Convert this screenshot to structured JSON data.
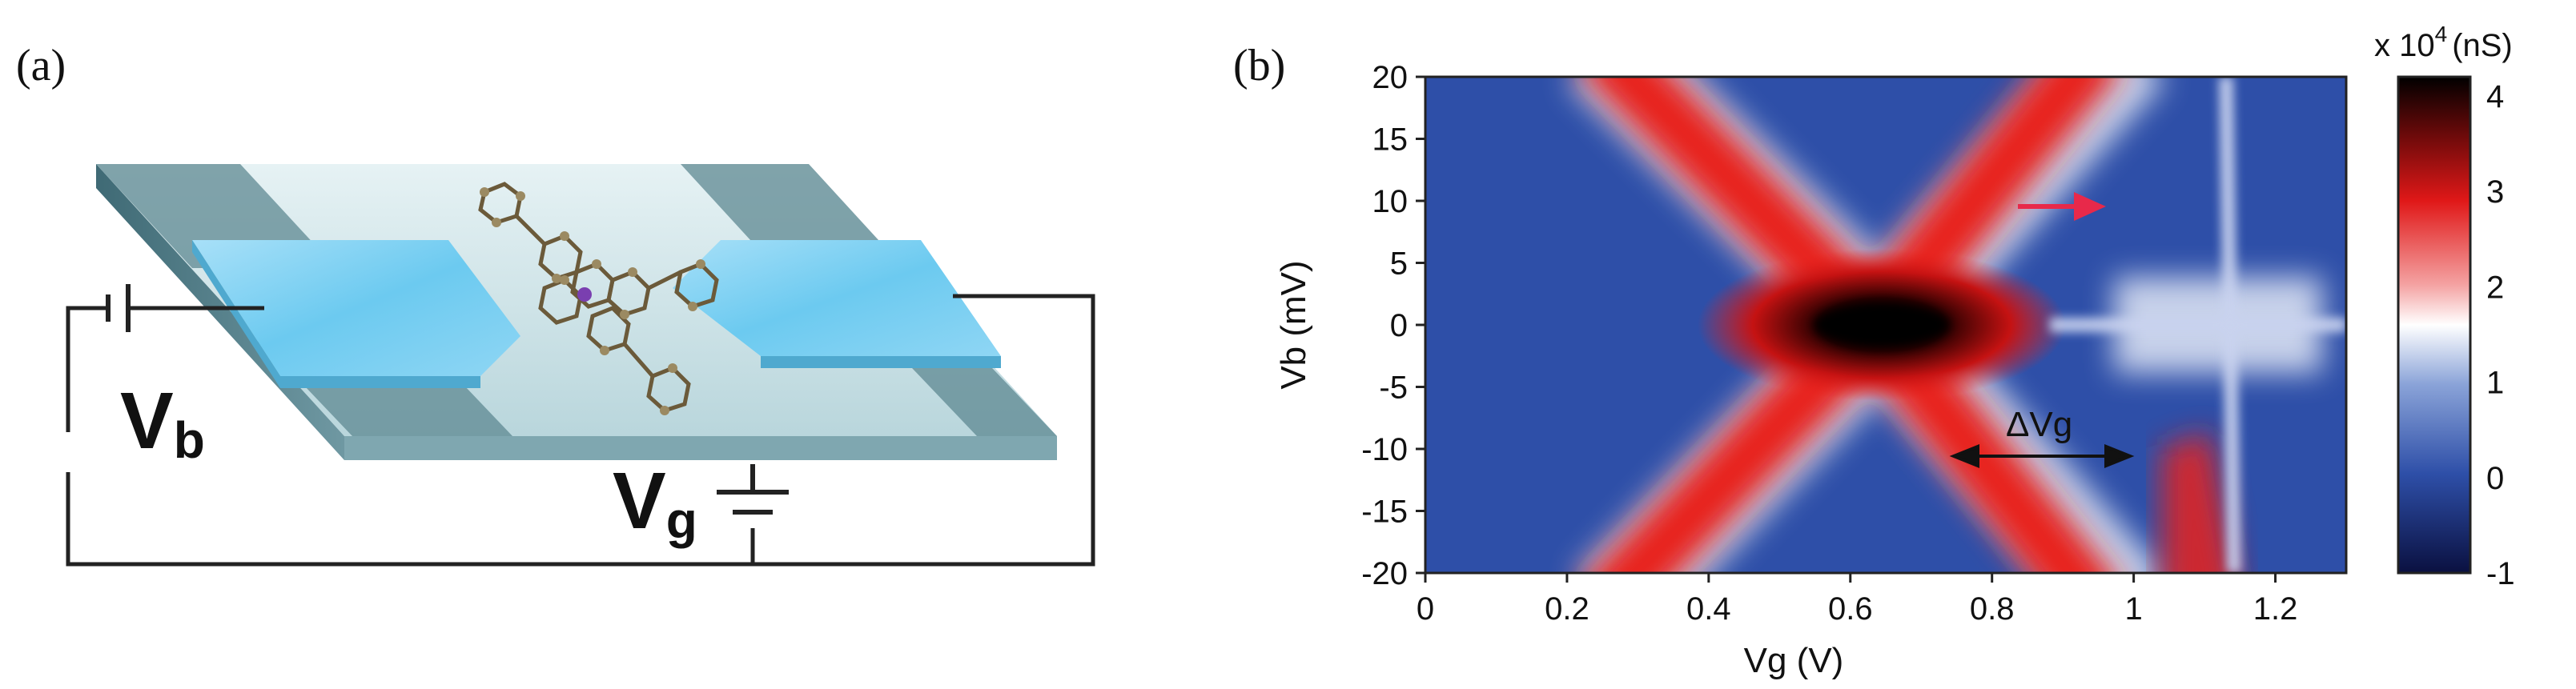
{
  "panel_a": {
    "label": "(a)",
    "vb_label": "V",
    "vb_sub": "b",
    "vg_label": "V",
    "vg_sub": "g"
  },
  "panel_b": {
    "label": "(b)",
    "colorbar_title": "x 10",
    "colorbar_exp": "4",
    "colorbar_unit": "(nS)",
    "annotation": "ΔVg",
    "colors": {
      "low": "#000000",
      "mid_blue": "#2e4fa8",
      "white": "#ffffff",
      "red": "#e8201c",
      "arrow": "#e8294a"
    }
  },
  "chart_data": {
    "type": "heatmap",
    "xlabel": "Vg (V)",
    "ylabel": "Vb (mV)",
    "xlim": [
      0,
      1.3
    ],
    "ylim": [
      -20,
      20
    ],
    "xticks": [
      "0",
      "0.2",
      "0.4",
      "0.6",
      "0.8",
      "1",
      "1.2"
    ],
    "yticks": [
      "20",
      "15",
      "10",
      "5",
      "0",
      "-5",
      "-10",
      "-15",
      "-20"
    ],
    "colorbar_ticks": [
      "4",
      "3",
      "2",
      "1",
      "0",
      "-1"
    ],
    "colorbar_range": [
      -1,
      4.2
    ],
    "charge_degeneracy_points_V": [
      0.5,
      0.97
    ],
    "delta_vg_span_V": [
      0.74,
      0.97
    ]
  }
}
